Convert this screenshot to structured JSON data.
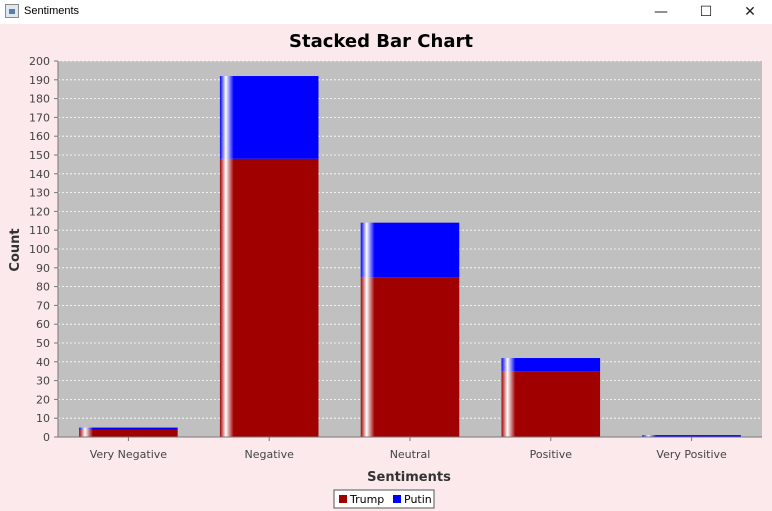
{
  "window": {
    "title": "Sentiments",
    "minimize_glyph": "—",
    "maximize_glyph": "☐",
    "close_glyph": "✕"
  },
  "chart_data": {
    "type": "bar",
    "stacked": true,
    "title": "Stacked Bar Chart",
    "xlabel": "Sentiments",
    "ylabel": "Count",
    "categories": [
      "Very Negative",
      "Negative",
      "Neutral",
      "Positive",
      "Very Positive"
    ],
    "series": [
      {
        "name": "Trump",
        "color": "#a00000",
        "values": [
          4,
          148,
          85,
          35,
          0
        ]
      },
      {
        "name": "Putin",
        "color": "#0000ff",
        "values": [
          1,
          44,
          29,
          7,
          1
        ]
      }
    ],
    "ylim": [
      0,
      200
    ],
    "ytick_step": 10,
    "grid": true,
    "plot_background": "#c0c0c0",
    "legend_position": "bottom"
  }
}
